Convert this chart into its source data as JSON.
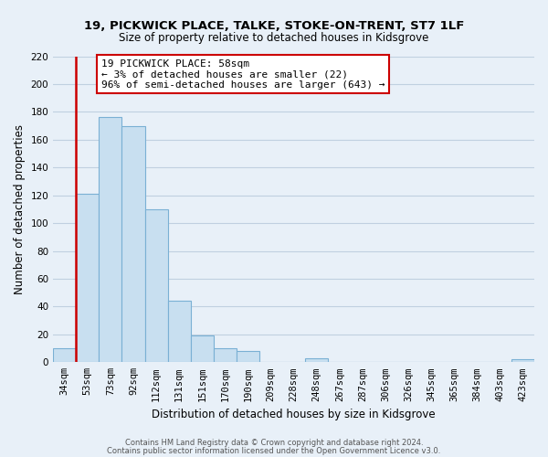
{
  "title": "19, PICKWICK PLACE, TALKE, STOKE-ON-TRENT, ST7 1LF",
  "subtitle": "Size of property relative to detached houses in Kidsgrove",
  "xlabel": "Distribution of detached houses by size in Kidsgrove",
  "ylabel": "Number of detached properties",
  "bar_labels": [
    "34sqm",
    "53sqm",
    "73sqm",
    "92sqm",
    "112sqm",
    "131sqm",
    "151sqm",
    "170sqm",
    "190sqm",
    "209sqm",
    "228sqm",
    "248sqm",
    "267sqm",
    "287sqm",
    "306sqm",
    "326sqm",
    "345sqm",
    "365sqm",
    "384sqm",
    "403sqm",
    "423sqm"
  ],
  "bar_heights": [
    10,
    121,
    176,
    170,
    110,
    44,
    19,
    10,
    8,
    0,
    0,
    3,
    0,
    0,
    0,
    0,
    0,
    0,
    0,
    0,
    2
  ],
  "bar_color": "#c8dff0",
  "bar_edge_color": "#7ab0d4",
  "highlight_color": "#cc0000",
  "red_line_x": 1.5,
  "ylim": [
    0,
    220
  ],
  "yticks": [
    0,
    20,
    40,
    60,
    80,
    100,
    120,
    140,
    160,
    180,
    200,
    220
  ],
  "annotation_title": "19 PICKWICK PLACE: 58sqm",
  "annotation_line1": "← 3% of detached houses are smaller (22)",
  "annotation_line2": "96% of semi-detached houses are larger (643) →",
  "footer1": "Contains HM Land Registry data © Crown copyright and database right 2024.",
  "footer2": "Contains public sector information licensed under the Open Government Licence v3.0.",
  "background_color": "#e8f0f8",
  "grid_color": "#c0d0e0"
}
